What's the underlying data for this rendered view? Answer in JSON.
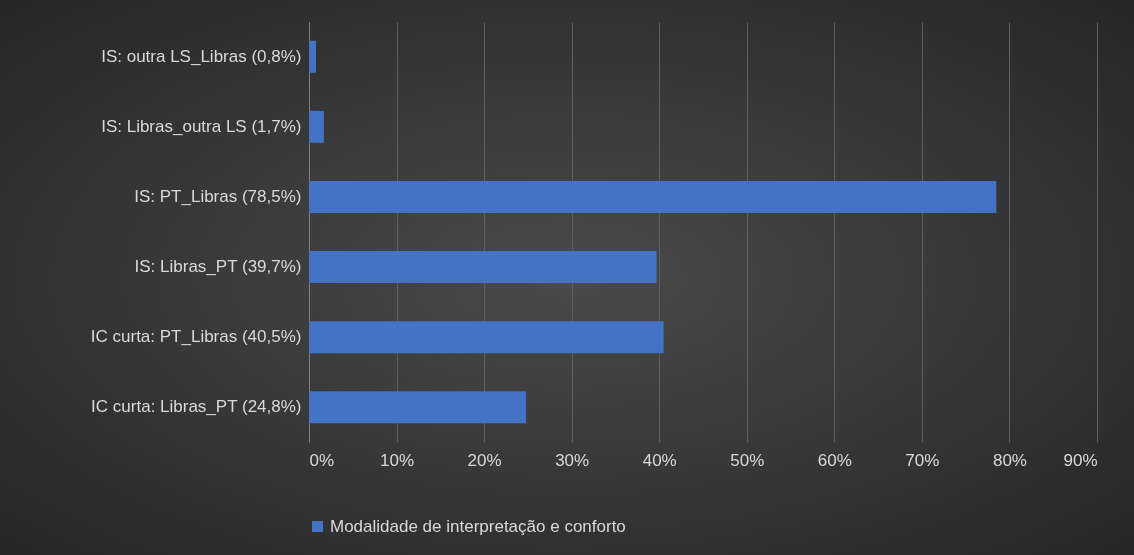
{
  "chart_data": {
    "type": "bar",
    "orientation": "horizontal",
    "categories": [
      "IS: outra LS_Libras (0,8%)",
      "IS: Libras_outra LS (1,7%)",
      "IS: PT_Libras (78,5%)",
      "IS: Libras_PT (39,7%)",
      "IC curta: PT_Libras (40,5%)",
      "IC curta: Libras_PT (24,8%)"
    ],
    "series": [
      {
        "name": "Modalidade de interpretação e conforto",
        "color": "#4472c4",
        "values": [
          0.8,
          1.7,
          78.5,
          39.7,
          40.5,
          24.8
        ]
      }
    ],
    "xlim": [
      0,
      90
    ],
    "xticks": [
      {
        "value": 0,
        "label": "0%"
      },
      {
        "value": 10,
        "label": "10%"
      },
      {
        "value": 20,
        "label": "20%"
      },
      {
        "value": 30,
        "label": "30%"
      },
      {
        "value": 40,
        "label": "40%"
      },
      {
        "value": 50,
        "label": "50%"
      },
      {
        "value": 60,
        "label": "60%"
      },
      {
        "value": 70,
        "label": "70%"
      },
      {
        "value": 80,
        "label": "80%"
      },
      {
        "value": 90,
        "label": "90%"
      }
    ],
    "grid": "x",
    "legend": "bottom"
  }
}
